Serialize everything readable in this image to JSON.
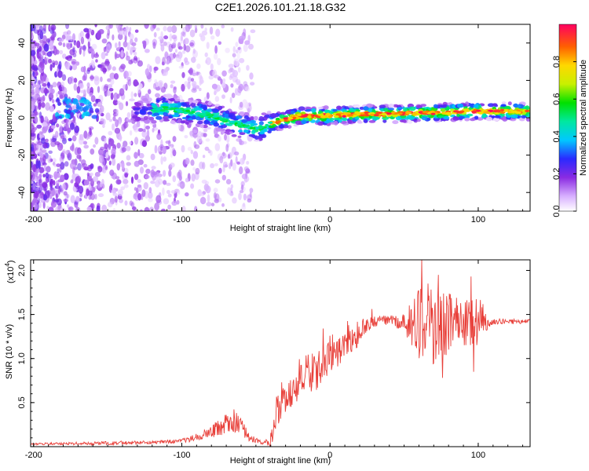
{
  "title": "C2E1.2026.101.21.18.G32",
  "chart_data": [
    {
      "type": "heatmap",
      "name": "spectrogram",
      "xlabel": "Height of straight line (km)",
      "ylabel": "Frequency (Hz)",
      "xlim": [
        -202,
        135
      ],
      "ylim": [
        -50,
        50
      ],
      "xticks": [
        -200,
        -100,
        0,
        100
      ],
      "xtick_labels": [
        "-200",
        "-100",
        "0",
        "100"
      ],
      "yticks": [
        -40,
        -20,
        0,
        20,
        40
      ],
      "ytick_labels": [
        "-40",
        "-20",
        "0",
        "20",
        "40"
      ],
      "colorbar": {
        "label": "Normalized spectral amplitude",
        "range": [
          0,
          1
        ],
        "ticks": [
          0.0,
          0.2,
          0.4,
          0.6,
          0.8
        ],
        "tick_labels": [
          "0.0",
          "0.2",
          "0.4",
          "0.6",
          "0.8"
        ]
      },
      "ridge": {
        "x": [
          -202,
          -180,
          -160,
          -130,
          -110,
          -95,
          -80,
          -65,
          -55,
          -50,
          -45,
          -40,
          -30,
          -20,
          -10,
          0,
          20,
          40,
          60,
          80,
          100,
          120,
          135
        ],
        "freq_hz": [
          3,
          6,
          5,
          3,
          5,
          3,
          1,
          -3,
          -5,
          -6,
          -5,
          -3,
          -1,
          1,
          1,
          1,
          2,
          2,
          2.5,
          3,
          3.5,
          3.5,
          3.5
        ]
      }
    },
    {
      "type": "line",
      "name": "snr",
      "xlabel": "Height of straight line (km)",
      "ylabel": "SNR (10 * v/v)",
      "yunit_note": "(x10",
      "yunit_exp": "4",
      "yunit_close": ")",
      "xlim": [
        -202,
        135
      ],
      "ylim": [
        0,
        2.12
      ],
      "xticks": [
        -200,
        -100,
        0,
        100
      ],
      "xtick_labels": [
        "-200",
        "-100",
        "0",
        "100"
      ],
      "yticks": [
        0.5,
        1.0,
        1.5,
        2.0
      ],
      "ytick_labels": [
        "0.5",
        "1.0",
        "1.5",
        "2.0"
      ],
      "color": "#e8403a",
      "envelope": {
        "x": [
          -202,
          -150,
          -120,
          -105,
          -95,
          -85,
          -75,
          -65,
          -60,
          -55,
          -50,
          -45,
          -40,
          -35,
          -30,
          -20,
          -10,
          0,
          10,
          20,
          25,
          30,
          40,
          50,
          60,
          70,
          80,
          90,
          100,
          110,
          135
        ],
        "mean": [
          0.03,
          0.04,
          0.05,
          0.06,
          0.08,
          0.14,
          0.22,
          0.3,
          0.22,
          0.12,
          0.07,
          0.04,
          0.06,
          0.4,
          0.55,
          0.72,
          0.85,
          1.0,
          1.12,
          1.28,
          1.38,
          1.42,
          1.44,
          1.4,
          1.4,
          1.38,
          1.4,
          1.4,
          1.42,
          1.42,
          1.42
        ],
        "amp": [
          0.01,
          0.02,
          0.02,
          0.02,
          0.03,
          0.06,
          0.1,
          0.14,
          0.1,
          0.06,
          0.03,
          0.02,
          0.08,
          0.15,
          0.18,
          0.2,
          0.22,
          0.2,
          0.15,
          0.12,
          0.08,
          0.06,
          0.05,
          0.1,
          0.4,
          0.45,
          0.35,
          0.25,
          0.3,
          0.03,
          0.03
        ]
      },
      "spikes": [
        {
          "x": 62,
          "y": 2.12
        },
        {
          "x": 59,
          "y": 1.72
        },
        {
          "x": 66,
          "y": 1.85
        },
        {
          "x": 73,
          "y": 1.95
        },
        {
          "x": 76,
          "y": 0.78
        },
        {
          "x": 95,
          "y": 1.93
        },
        {
          "x": 97,
          "y": 0.85
        }
      ]
    }
  ]
}
